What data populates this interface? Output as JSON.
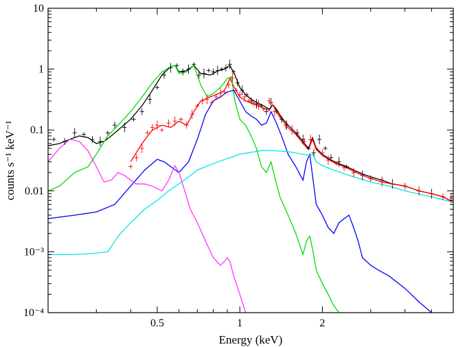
{
  "chart_data": {
    "type": "line",
    "title": "",
    "xlabel": "Energy (keV)",
    "ylabel": "counts s⁻¹ keV⁻¹",
    "xscale": "log",
    "yscale": "log",
    "xlim": [
      0.2,
      6.0
    ],
    "ylim": [
      0.0001,
      10
    ],
    "x_ticks": [
      {
        "value": 0.5,
        "label": "0.5"
      },
      {
        "value": 1,
        "label": "1"
      },
      {
        "value": 2,
        "label": "2"
      }
    ],
    "y_ticks": [
      {
        "value": 0.0001,
        "label": "10⁻⁴"
      },
      {
        "value": 0.001,
        "label": "10⁻³"
      },
      {
        "value": 0.01,
        "label": "0.01"
      },
      {
        "value": 0.1,
        "label": "0.1"
      },
      {
        "value": 1,
        "label": "1"
      },
      {
        "value": 10,
        "label": "10"
      }
    ],
    "data_series": [
      {
        "name": "data-black",
        "color": "#000000",
        "x": [
          0.21,
          0.23,
          0.25,
          0.27,
          0.29,
          0.31,
          0.33,
          0.35,
          0.38,
          0.41,
          0.44,
          0.47,
          0.5,
          0.53,
          0.56,
          0.59,
          0.62,
          0.65,
          0.68,
          0.71,
          0.74,
          0.77,
          0.8,
          0.83,
          0.86,
          0.89,
          0.92,
          0.95,
          0.98,
          1.02,
          1.06,
          1.1,
          1.15,
          1.2,
          1.25,
          1.3,
          1.36,
          1.42,
          1.48,
          1.55,
          1.62,
          1.7,
          1.78,
          1.86,
          1.95,
          2.05,
          2.15,
          2.3,
          2.45,
          2.6,
          2.8,
          3.0,
          3.3,
          3.6,
          4.0,
          4.5,
          5.0,
          5.5,
          5.9
        ],
        "y": [
          0.07,
          0.065,
          0.09,
          0.085,
          0.07,
          0.065,
          0.09,
          0.12,
          0.11,
          0.15,
          0.2,
          0.32,
          0.5,
          0.8,
          1.05,
          1.15,
          0.9,
          1.0,
          1.2,
          0.8,
          0.85,
          0.95,
          0.9,
          0.95,
          1.0,
          1.05,
          1.2,
          0.9,
          0.6,
          0.45,
          0.38,
          0.3,
          0.27,
          0.25,
          0.2,
          0.28,
          0.2,
          0.15,
          0.12,
          0.1,
          0.09,
          0.07,
          0.05,
          0.042,
          0.07,
          0.05,
          0.035,
          0.03,
          0.025,
          0.02,
          0.018,
          0.016,
          0.015,
          0.013,
          0.012,
          0.01,
          0.009,
          0.008,
          0.0075
        ]
      },
      {
        "name": "data-red",
        "color": "#ff0000",
        "x": [
          0.4,
          0.42,
          0.44,
          0.46,
          0.48,
          0.5,
          0.52,
          0.55,
          0.58,
          0.61,
          0.64,
          0.67,
          0.7,
          0.73,
          0.76,
          0.79,
          0.82,
          0.85,
          0.88,
          0.91,
          0.94,
          0.97,
          1.0,
          1.04,
          1.08,
          1.12,
          1.17,
          1.22,
          1.28,
          1.34,
          1.4,
          1.47,
          1.55,
          1.63,
          1.72,
          1.81,
          1.9,
          2.0,
          2.1,
          2.25,
          2.4,
          2.6,
          2.8,
          3.0,
          3.3,
          3.6,
          4.0,
          4.5,
          5.0,
          5.5,
          5.9
        ],
        "y": [
          0.025,
          0.035,
          0.05,
          0.09,
          0.11,
          0.12,
          0.1,
          0.13,
          0.14,
          0.15,
          0.12,
          0.18,
          0.25,
          0.3,
          0.32,
          0.28,
          0.35,
          0.4,
          0.42,
          0.55,
          0.72,
          0.45,
          0.38,
          0.35,
          0.3,
          0.28,
          0.26,
          0.22,
          0.3,
          0.2,
          0.17,
          0.12,
          0.1,
          0.08,
          0.065,
          0.07,
          0.05,
          0.042,
          0.032,
          0.028,
          0.024,
          0.02,
          0.018,
          0.016,
          0.014,
          0.013,
          0.012,
          0.01,
          0.009,
          0.008,
          0.0075
        ]
      }
    ],
    "model_series": [
      {
        "name": "total-model-black",
        "color": "#000000",
        "x": [
          0.2,
          0.22,
          0.24,
          0.26,
          0.28,
          0.3,
          0.32,
          0.34,
          0.36,
          0.4,
          0.44,
          0.48,
          0.52,
          0.56,
          0.58,
          0.6,
          0.64,
          0.68,
          0.72,
          0.78,
          0.84,
          0.88,
          0.92,
          0.96,
          1.0,
          1.05,
          1.1,
          1.16,
          1.22,
          1.28,
          1.32,
          1.36,
          1.42,
          1.5,
          1.6,
          1.7,
          1.78,
          1.84,
          1.9,
          2.0,
          2.15,
          2.3,
          2.45,
          2.6,
          2.8,
          3.0,
          3.3,
          3.6,
          4.0,
          4.5,
          5.0,
          5.5,
          6.0
        ],
        "y": [
          0.055,
          0.06,
          0.07,
          0.08,
          0.075,
          0.06,
          0.065,
          0.08,
          0.1,
          0.15,
          0.25,
          0.45,
          0.8,
          1.1,
          1.15,
          0.9,
          0.95,
          1.15,
          0.85,
          0.8,
          0.95,
          1.0,
          1.15,
          0.8,
          0.5,
          0.38,
          0.32,
          0.28,
          0.25,
          0.22,
          0.26,
          0.22,
          0.16,
          0.12,
          0.09,
          0.065,
          0.05,
          0.075,
          0.05,
          0.04,
          0.032,
          0.028,
          0.025,
          0.022,
          0.019,
          0.017,
          0.015,
          0.013,
          0.012,
          0.01,
          0.009,
          0.008,
          0.0065
        ]
      },
      {
        "name": "total-model-red",
        "color": "#ff0000",
        "x": [
          0.4,
          0.44,
          0.48,
          0.52,
          0.56,
          0.6,
          0.64,
          0.68,
          0.72,
          0.78,
          0.84,
          0.88,
          0.92,
          0.96,
          1.0,
          1.05,
          1.1,
          1.16,
          1.22,
          1.28,
          1.32,
          1.36,
          1.42,
          1.5,
          1.6,
          1.7,
          1.78,
          1.84,
          1.9,
          2.0,
          2.15,
          2.3,
          2.45,
          2.6,
          2.8,
          3.0,
          3.3,
          3.6,
          4.0,
          4.5,
          5.0,
          5.5,
          6.0
        ],
        "y": [
          0.03,
          0.06,
          0.1,
          0.12,
          0.11,
          0.14,
          0.12,
          0.2,
          0.3,
          0.35,
          0.4,
          0.45,
          0.7,
          0.48,
          0.35,
          0.3,
          0.28,
          0.25,
          0.23,
          0.21,
          0.26,
          0.2,
          0.15,
          0.11,
          0.085,
          0.06,
          0.048,
          0.07,
          0.048,
          0.038,
          0.031,
          0.027,
          0.024,
          0.021,
          0.018,
          0.016,
          0.014,
          0.013,
          0.012,
          0.01,
          0.009,
          0.008,
          0.0065
        ]
      },
      {
        "name": "green-component",
        "color": "#00dd00",
        "x": [
          0.2,
          0.22,
          0.25,
          0.28,
          0.3,
          0.33,
          0.36,
          0.4,
          0.44,
          0.48,
          0.52,
          0.56,
          0.58,
          0.6,
          0.64,
          0.68,
          0.72,
          0.76,
          0.8,
          0.85,
          0.9,
          0.93,
          0.96,
          1.0,
          1.05,
          1.1,
          1.15,
          1.2,
          1.25,
          1.3,
          1.35,
          1.4,
          1.5,
          1.6,
          1.7,
          1.75,
          1.8,
          1.85,
          1.9,
          2.0,
          2.1,
          2.2,
          2.3
        ],
        "y": [
          0.01,
          0.012,
          0.02,
          0.025,
          0.04,
          0.08,
          0.12,
          0.2,
          0.35,
          0.6,
          0.9,
          1.1,
          1.15,
          0.85,
          0.9,
          1.15,
          0.55,
          0.35,
          0.4,
          0.5,
          0.7,
          0.75,
          0.3,
          0.15,
          0.12,
          0.08,
          0.05,
          0.025,
          0.02,
          0.03,
          0.015,
          0.008,
          0.004,
          0.002,
          0.0009,
          0.0015,
          0.0018,
          0.001,
          0.0005,
          0.0003,
          0.0002,
          0.00013,
          0.0001
        ]
      },
      {
        "name": "blue-component",
        "color": "#0000ff",
        "x": [
          0.2,
          0.25,
          0.3,
          0.35,
          0.4,
          0.45,
          0.5,
          0.53,
          0.56,
          0.6,
          0.65,
          0.7,
          0.75,
          0.8,
          0.85,
          0.9,
          0.95,
          1.0,
          1.05,
          1.1,
          1.15,
          1.2,
          1.25,
          1.3,
          1.36,
          1.42,
          1.5,
          1.6,
          1.7,
          1.75,
          1.8,
          1.85,
          1.9,
          2.0,
          2.1,
          2.2,
          2.3,
          2.4,
          2.5,
          2.6,
          2.7,
          2.8,
          3.0,
          3.2,
          3.5,
          4.0,
          4.5,
          5.0
        ],
        "y": [
          0.0035,
          0.004,
          0.0045,
          0.006,
          0.012,
          0.022,
          0.033,
          0.03,
          0.025,
          0.02,
          0.03,
          0.07,
          0.18,
          0.3,
          0.35,
          0.42,
          0.45,
          0.3,
          0.2,
          0.17,
          0.15,
          0.12,
          0.13,
          0.2,
          0.13,
          0.08,
          0.04,
          0.025,
          0.015,
          0.03,
          0.04,
          0.015,
          0.006,
          0.004,
          0.0025,
          0.002,
          0.003,
          0.0035,
          0.004,
          0.0025,
          0.0015,
          0.0008,
          0.0006,
          0.0005,
          0.0004,
          0.00025,
          0.00015,
          0.0001
        ]
      },
      {
        "name": "cyan-component",
        "color": "#00e5e5",
        "x": [
          0.2,
          0.25,
          0.3,
          0.33,
          0.36,
          0.4,
          0.45,
          0.5,
          0.55,
          0.6,
          0.65,
          0.7,
          0.8,
          0.9,
          1.0,
          1.1,
          1.2,
          1.3,
          1.4,
          1.5,
          1.6,
          1.7,
          1.8,
          1.85,
          1.9,
          2.0,
          2.2,
          2.5,
          3.0,
          3.5,
          4.0,
          5.0,
          6.0
        ],
        "y": [
          0.0009,
          0.0009,
          0.00095,
          0.001,
          0.0018,
          0.003,
          0.005,
          0.007,
          0.01,
          0.013,
          0.017,
          0.022,
          0.028,
          0.034,
          0.04,
          0.043,
          0.046,
          0.046,
          0.045,
          0.044,
          0.042,
          0.04,
          0.038,
          0.04,
          0.03,
          0.026,
          0.022,
          0.018,
          0.014,
          0.012,
          0.01,
          0.008,
          0.0065
        ]
      },
      {
        "name": "magenta-component",
        "color": "#ff33ff",
        "x": [
          0.2,
          0.22,
          0.24,
          0.26,
          0.28,
          0.3,
          0.32,
          0.34,
          0.36,
          0.38,
          0.4,
          0.42,
          0.45,
          0.48,
          0.52,
          0.55,
          0.58,
          0.6,
          0.63,
          0.66,
          0.7,
          0.75,
          0.8,
          0.85,
          0.88,
          0.9,
          0.92,
          0.95,
          1.0,
          1.05
        ],
        "y": [
          0.03,
          0.05,
          0.07,
          0.065,
          0.045,
          0.025,
          0.014,
          0.015,
          0.02,
          0.018,
          0.015,
          0.013,
          0.013,
          0.012,
          0.01,
          0.015,
          0.026,
          0.02,
          0.01,
          0.005,
          0.003,
          0.0015,
          0.0008,
          0.0006,
          0.0007,
          0.0008,
          0.0007,
          0.0004,
          0.0002,
          0.0001
        ]
      }
    ]
  }
}
